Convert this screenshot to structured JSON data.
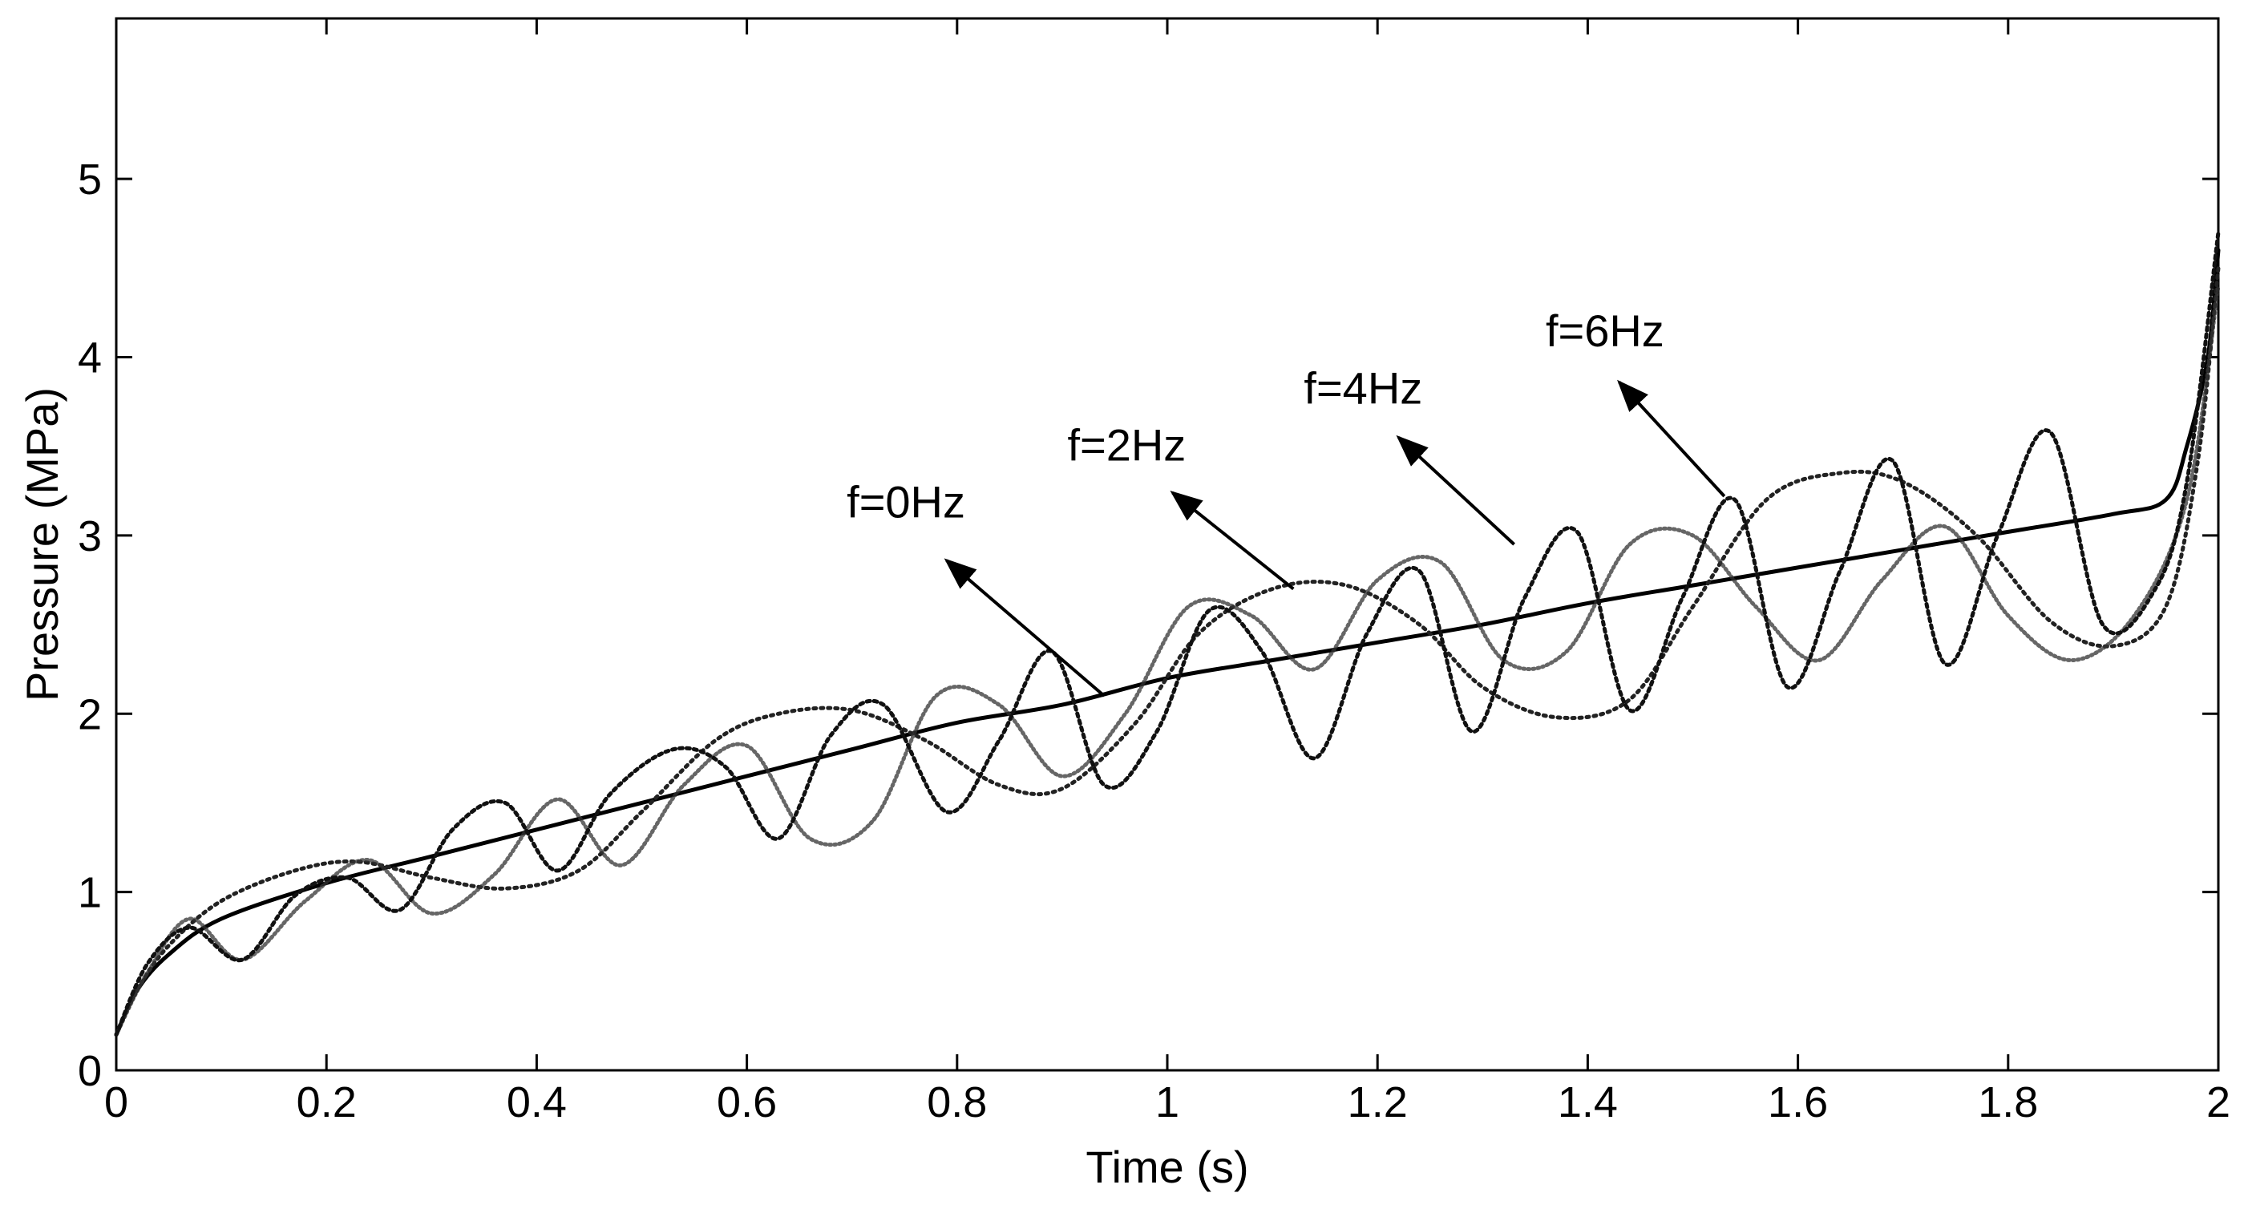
{
  "chart_data": {
    "type": "line",
    "title": "",
    "xlabel": "Time (s)",
    "ylabel": "Pressure (MPa)",
    "xlim": [
      0,
      2
    ],
    "ylim": [
      0,
      5.9
    ],
    "grid": false,
    "xticks": [
      0,
      0.2,
      0.4,
      0.6,
      0.8,
      1,
      1.2,
      1.4,
      1.6,
      1.8,
      2
    ],
    "xtick_labels": [
      "0",
      "0.2",
      "0.4",
      "0.6",
      "0.8",
      "1",
      "1.2",
      "1.4",
      "1.6",
      "1.8",
      "2"
    ],
    "yticks": [
      0,
      1,
      2,
      3,
      4,
      5
    ],
    "ytick_labels": [
      "0",
      "1",
      "2",
      "3",
      "4",
      "5"
    ],
    "series": [
      {
        "name": "f=0Hz",
        "color": "#000000",
        "style": "solid",
        "x": [
          0,
          0.02,
          0.05,
          0.1,
          0.2,
          0.3,
          0.4,
          0.5,
          0.6,
          0.7,
          0.8,
          0.9,
          1.0,
          1.1,
          1.2,
          1.3,
          1.4,
          1.5,
          1.6,
          1.7,
          1.8,
          1.9,
          1.95,
          1.97,
          1.99,
          2.0
        ],
        "y": [
          0.2,
          0.45,
          0.65,
          0.85,
          1.05,
          1.2,
          1.35,
          1.5,
          1.65,
          1.8,
          1.95,
          2.05,
          2.2,
          2.3,
          2.4,
          2.5,
          2.62,
          2.72,
          2.82,
          2.92,
          3.02,
          3.12,
          3.2,
          3.5,
          4.0,
          4.6
        ]
      },
      {
        "name": "f=2Hz",
        "color": "#222222",
        "style": "dotted",
        "x": [
          0,
          0.02,
          0.05,
          0.1,
          0.17,
          0.23,
          0.3,
          0.37,
          0.44,
          0.5,
          0.57,
          0.63,
          0.7,
          0.77,
          0.84,
          0.9,
          0.97,
          1.03,
          1.1,
          1.17,
          1.24,
          1.3,
          1.37,
          1.44,
          1.5,
          1.57,
          1.64,
          1.7,
          1.77,
          1.84,
          1.9,
          1.95,
          1.98,
          2.0
        ],
        "y": [
          0.2,
          0.45,
          0.7,
          0.95,
          1.12,
          1.17,
          1.08,
          1.02,
          1.12,
          1.45,
          1.85,
          2.0,
          2.02,
          1.85,
          1.6,
          1.58,
          1.95,
          2.45,
          2.7,
          2.72,
          2.5,
          2.15,
          1.98,
          2.08,
          2.6,
          3.2,
          3.35,
          3.3,
          3.0,
          2.52,
          2.38,
          2.6,
          3.4,
          4.5
        ]
      },
      {
        "name": "f=4Hz",
        "color": "#333333",
        "style": "dotted",
        "x": [
          0,
          0.03,
          0.07,
          0.12,
          0.18,
          0.24,
          0.3,
          0.36,
          0.42,
          0.48,
          0.54,
          0.6,
          0.66,
          0.72,
          0.78,
          0.84,
          0.9,
          0.96,
          1.02,
          1.08,
          1.14,
          1.2,
          1.26,
          1.32,
          1.38,
          1.44,
          1.5,
          1.56,
          1.62,
          1.68,
          1.74,
          1.8,
          1.86,
          1.92,
          1.97,
          2.0
        ],
        "y": [
          0.2,
          0.55,
          0.85,
          0.62,
          0.95,
          1.18,
          0.88,
          1.1,
          1.52,
          1.15,
          1.6,
          1.82,
          1.3,
          1.4,
          2.1,
          2.05,
          1.65,
          2.0,
          2.6,
          2.55,
          2.25,
          2.75,
          2.85,
          2.3,
          2.35,
          2.95,
          3.0,
          2.6,
          2.3,
          2.75,
          3.05,
          2.55,
          2.3,
          2.55,
          3.2,
          4.4
        ]
      },
      {
        "name": "f=6Hz",
        "color": "#111111",
        "style": "dotted",
        "x": [
          0,
          0.03,
          0.07,
          0.12,
          0.17,
          0.22,
          0.27,
          0.32,
          0.37,
          0.42,
          0.47,
          0.53,
          0.58,
          0.63,
          0.68,
          0.73,
          0.79,
          0.84,
          0.89,
          0.94,
          0.99,
          1.04,
          1.09,
          1.14,
          1.19,
          1.24,
          1.29,
          1.34,
          1.39,
          1.44,
          1.49,
          1.54,
          1.59,
          1.64,
          1.69,
          1.74,
          1.79,
          1.84,
          1.89,
          1.94,
          1.97,
          2.0
        ],
        "y": [
          0.2,
          0.6,
          0.8,
          0.62,
          0.98,
          1.08,
          0.9,
          1.35,
          1.5,
          1.12,
          1.55,
          1.8,
          1.7,
          1.3,
          1.88,
          2.05,
          1.45,
          1.85,
          2.35,
          1.6,
          1.9,
          2.58,
          2.35,
          1.75,
          2.45,
          2.8,
          1.9,
          2.65,
          3.02,
          2.02,
          2.65,
          3.2,
          2.15,
          2.8,
          3.42,
          2.28,
          3.0,
          3.58,
          2.5,
          2.7,
          3.3,
          4.7
        ]
      }
    ],
    "annotations": [
      {
        "text": "f=0Hz",
        "x_label": 0.695,
        "y_label": 3.1,
        "arrow_from": [
          0.94,
          2.1
        ],
        "arrow_to": [
          0.79,
          2.86
        ]
      },
      {
        "text": "f=2Hz",
        "x_label": 0.905,
        "y_label": 3.42,
        "arrow_from": [
          1.12,
          2.7
        ],
        "arrow_to": [
          1.005,
          3.24
        ]
      },
      {
        "text": "f=4Hz",
        "x_label": 1.13,
        "y_label": 3.74,
        "arrow_from": [
          1.33,
          2.95
        ],
        "arrow_to": [
          1.22,
          3.55
        ]
      },
      {
        "text": "f=6Hz",
        "x_label": 1.36,
        "y_label": 4.06,
        "arrow_from": [
          1.53,
          3.22
        ],
        "arrow_to": [
          1.43,
          3.86
        ]
      }
    ]
  }
}
